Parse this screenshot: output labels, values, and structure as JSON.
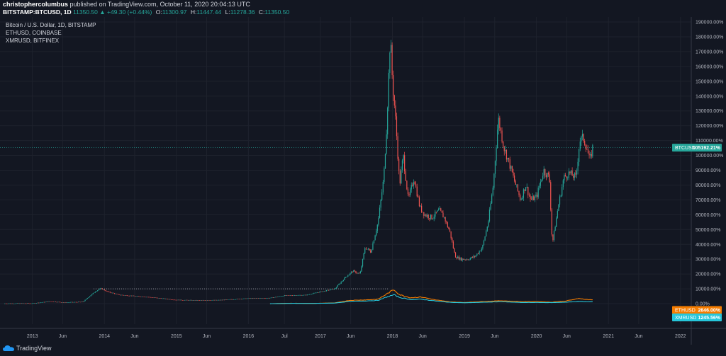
{
  "header": {
    "author": "christophercolumbus",
    "published": "published on TradingView.com, October 11, 2020 20:04:13 UTC",
    "symbol": "BITSTAMP:BTCUSD, 1D",
    "last": "11350.50",
    "change": "▲ +49.30 (+0.44%)",
    "ohlc": [
      {
        "k": "O:",
        "v": "11300.97"
      },
      {
        "k": "H:",
        "v": "11447.44"
      },
      {
        "k": "L:",
        "v": "11278.36"
      },
      {
        "k": "C:",
        "v": "11350.50"
      }
    ]
  },
  "legend": {
    "btc": "Bitcoin / U.S. Dollar, 1D, BITSTAMP",
    "eth": "ETHUSD, COINBASE",
    "xmr": "XMRUSD, BITFINEX"
  },
  "footer": {
    "brand": "TradingView"
  },
  "colors": {
    "background": "#131722",
    "candle_up": "#26a69a",
    "candle_down": "#ef5350",
    "eth": "#f57c00",
    "xmr": "#26c6da",
    "btc_tag": "#26a69a"
  },
  "chart_data": {
    "type": "line",
    "y_unit": "%",
    "ylim": [
      -10000,
      190000
    ],
    "y_ticks": [
      "190000.00%",
      "180000.00%",
      "170000.00%",
      "160000.00%",
      "150000.00%",
      "140000.00%",
      "130000.00%",
      "120000.00%",
      "110000.00%",
      "100000.00%",
      "90000.00%",
      "80000.00%",
      "70000.00%",
      "60000.00%",
      "50000.00%",
      "40000.00%",
      "30000.00%",
      "20000.00%",
      "10000.00%",
      "0.00%"
    ],
    "x_ticks": [
      "2013",
      "Jun",
      "2014",
      "Jun",
      "2015",
      "Jun",
      "2016",
      "Jul",
      "2017",
      "Jun",
      "2018",
      "Jun",
      "2019",
      "Jun",
      "2020",
      "Jun",
      "2021",
      "Jun",
      "2022"
    ],
    "x_tick_years": [
      2013.0,
      2013.42,
      2014.0,
      2014.42,
      2015.0,
      2015.42,
      2016.0,
      2016.5,
      2017.0,
      2017.42,
      2018.0,
      2018.42,
      2019.0,
      2019.42,
      2020.0,
      2020.42,
      2021.0,
      2021.42,
      2022.0
    ],
    "xlim": [
      2012.55,
      2022.15
    ],
    "reference_line": {
      "value": 10000,
      "from": 2013.85,
      "to": 2017.95
    },
    "series": [
      {
        "name": "BTCUSD",
        "tag": "105192.21%",
        "last_value": 105192.21,
        "points": [
          [
            2012.6,
            100
          ],
          [
            2013.0,
            200
          ],
          [
            2013.25,
            1500
          ],
          [
            2013.45,
            800
          ],
          [
            2013.7,
            1200
          ],
          [
            2013.88,
            8500
          ],
          [
            2013.95,
            10200
          ],
          [
            2014.05,
            8000
          ],
          [
            2014.2,
            6000
          ],
          [
            2014.4,
            5200
          ],
          [
            2014.6,
            4500
          ],
          [
            2014.8,
            3500
          ],
          [
            2015.0,
            2500
          ],
          [
            2015.3,
            2200
          ],
          [
            2015.6,
            2400
          ],
          [
            2015.8,
            3000
          ],
          [
            2016.0,
            3500
          ],
          [
            2016.3,
            3800
          ],
          [
            2016.5,
            5500
          ],
          [
            2016.8,
            5800
          ],
          [
            2017.0,
            8000
          ],
          [
            2017.2,
            10000
          ],
          [
            2017.35,
            18000
          ],
          [
            2017.45,
            22000
          ],
          [
            2017.55,
            20000
          ],
          [
            2017.62,
            38000
          ],
          [
            2017.7,
            35000
          ],
          [
            2017.8,
            55000
          ],
          [
            2017.88,
            85000
          ],
          [
            2017.92,
            120000
          ],
          [
            2017.97,
            180000
          ],
          [
            2018.0,
            150000
          ],
          [
            2018.05,
            120000
          ],
          [
            2018.1,
            80000
          ],
          [
            2018.15,
            100000
          ],
          [
            2018.22,
            70000
          ],
          [
            2018.3,
            85000
          ],
          [
            2018.38,
            65000
          ],
          [
            2018.45,
            60000
          ],
          [
            2018.55,
            58000
          ],
          [
            2018.65,
            63000
          ],
          [
            2018.72,
            58000
          ],
          [
            2018.8,
            48000
          ],
          [
            2018.87,
            32000
          ],
          [
            2018.95,
            30000
          ],
          [
            2019.05,
            30000
          ],
          [
            2019.15,
            32000
          ],
          [
            2019.25,
            38000
          ],
          [
            2019.33,
            55000
          ],
          [
            2019.4,
            80000
          ],
          [
            2019.47,
            125000
          ],
          [
            2019.55,
            105000
          ],
          [
            2019.62,
            95000
          ],
          [
            2019.7,
            82000
          ],
          [
            2019.78,
            70000
          ],
          [
            2019.85,
            80000
          ],
          [
            2019.92,
            70000
          ],
          [
            2020.0,
            72000
          ],
          [
            2020.1,
            90000
          ],
          [
            2020.18,
            85000
          ],
          [
            2020.22,
            40000
          ],
          [
            2020.3,
            65000
          ],
          [
            2020.38,
            85000
          ],
          [
            2020.45,
            88000
          ],
          [
            2020.55,
            85000
          ],
          [
            2020.6,
            110000
          ],
          [
            2020.65,
            112000
          ],
          [
            2020.7,
            105000
          ],
          [
            2020.74,
            96000
          ],
          [
            2020.78,
            105192.21
          ]
        ]
      },
      {
        "name": "ETHUSD",
        "tag": "2646.00%",
        "last_value": 2646.0,
        "points": [
          [
            2016.3,
            0
          ],
          [
            2016.6,
            300
          ],
          [
            2016.9,
            200
          ],
          [
            2017.2,
            500
          ],
          [
            2017.4,
            2200
          ],
          [
            2017.6,
            2500
          ],
          [
            2017.8,
            3000
          ],
          [
            2017.92,
            6500
          ],
          [
            2018.02,
            9500
          ],
          [
            2018.1,
            6000
          ],
          [
            2018.25,
            4000
          ],
          [
            2018.4,
            4500
          ],
          [
            2018.6,
            2500
          ],
          [
            2018.8,
            1200
          ],
          [
            2019.0,
            800
          ],
          [
            2019.3,
            1500
          ],
          [
            2019.5,
            2000
          ],
          [
            2019.8,
            1300
          ],
          [
            2020.0,
            1400
          ],
          [
            2020.2,
            1000
          ],
          [
            2020.4,
            1800
          ],
          [
            2020.6,
            3500
          ],
          [
            2020.7,
            2800
          ],
          [
            2020.78,
            2646
          ]
        ]
      },
      {
        "name": "XMRUSD",
        "tag": "1245.56%",
        "last_value": 1245.56,
        "points": [
          [
            2016.3,
            0
          ],
          [
            2016.6,
            200
          ],
          [
            2016.9,
            150
          ],
          [
            2017.2,
            400
          ],
          [
            2017.4,
            1500
          ],
          [
            2017.6,
            1800
          ],
          [
            2017.8,
            2200
          ],
          [
            2017.92,
            4500
          ],
          [
            2018.02,
            6000
          ],
          [
            2018.1,
            4200
          ],
          [
            2018.25,
            2800
          ],
          [
            2018.4,
            3000
          ],
          [
            2018.6,
            1800
          ],
          [
            2018.8,
            900
          ],
          [
            2019.0,
            600
          ],
          [
            2019.3,
            1000
          ],
          [
            2019.5,
            1300
          ],
          [
            2019.8,
            800
          ],
          [
            2020.0,
            800
          ],
          [
            2020.2,
            700
          ],
          [
            2020.4,
            1000
          ],
          [
            2020.6,
            1400
          ],
          [
            2020.7,
            1200
          ],
          [
            2020.78,
            1245.56
          ]
        ]
      }
    ]
  }
}
